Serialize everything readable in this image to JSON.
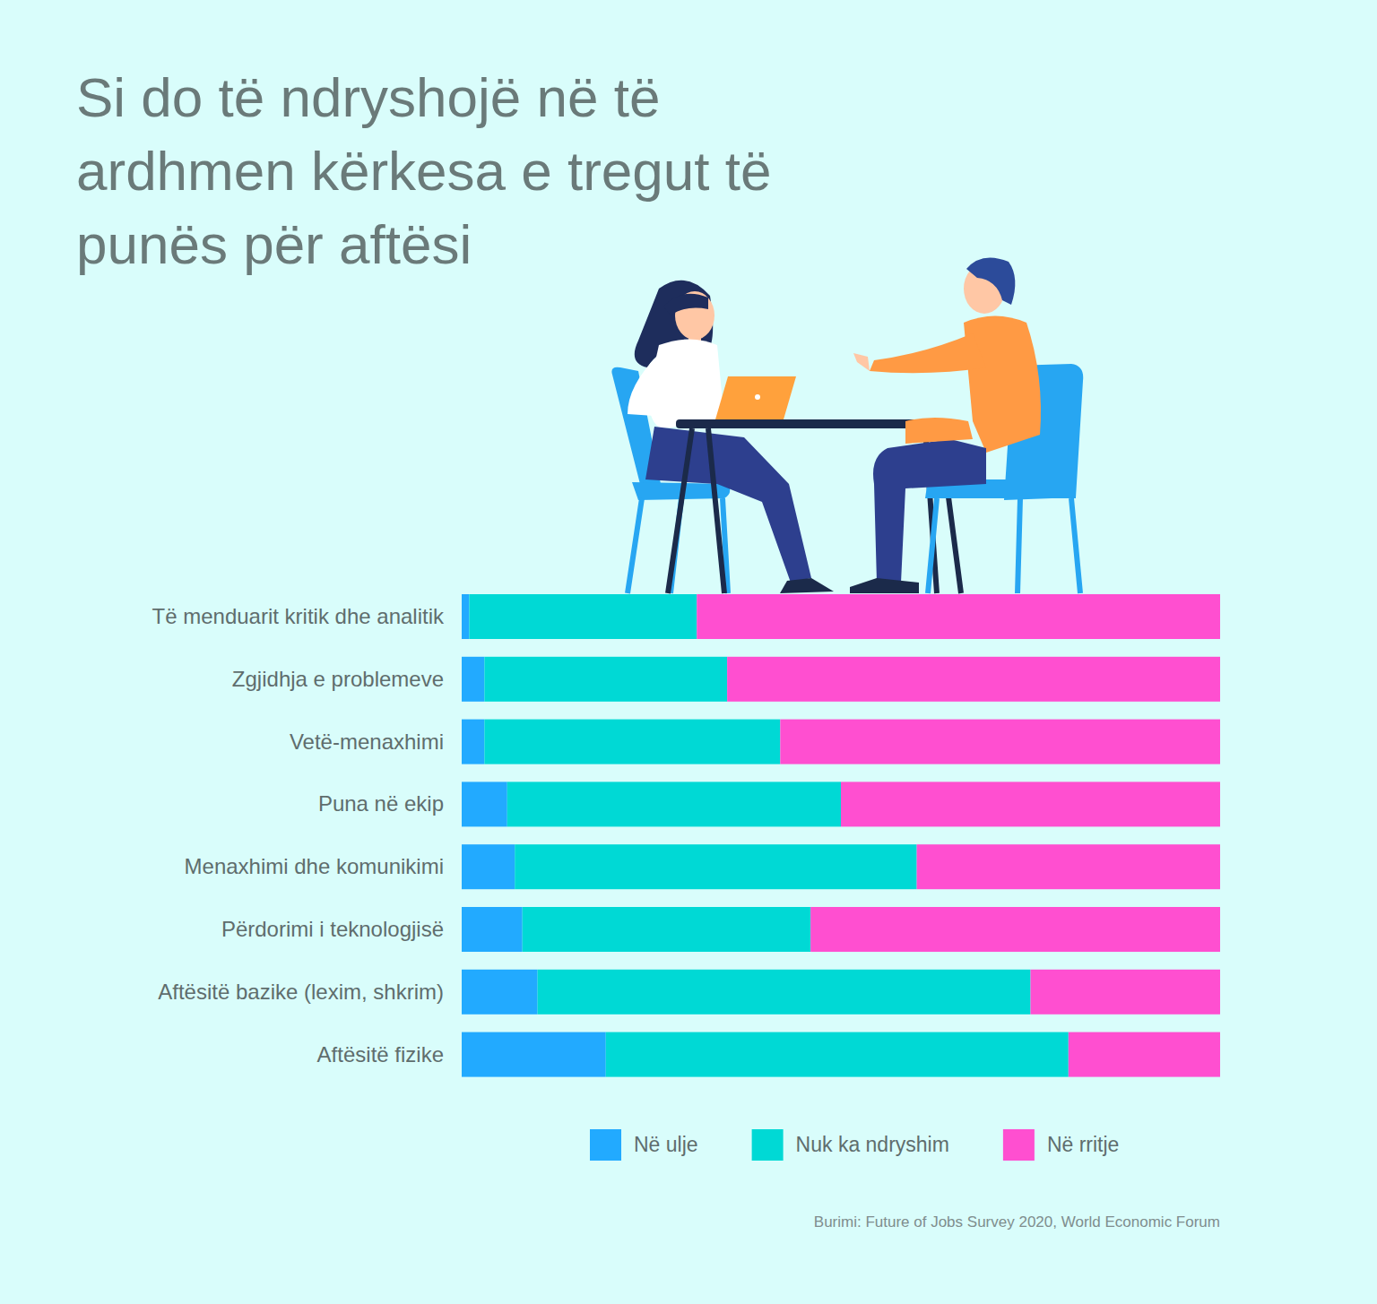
{
  "chart_data": {
    "type": "bar",
    "orientation": "horizontal",
    "stacked": true,
    "title": "Si do të ndryshojë në të ardhmen kërkesa e tregut të punës për aftësi",
    "source": "Burimi: Future of Jobs Survey 2020, World Economic Forum",
    "categories": [
      "Të menduarit kritik dhe analitik",
      "Zgjidhja e problemeve",
      "Vetë-menaxhimi",
      "Puna në ekip",
      "Menaxhimi dhe komunikimi",
      "Përdorimi i teknologjisë",
      "Aftësitë bazike (lexim, shkrim)",
      "Aftësitë fizike"
    ],
    "series": [
      {
        "name": "Në ulje",
        "color": "#22aaff",
        "values": [
          1,
          3,
          3,
          6,
          7,
          8,
          10,
          19
        ]
      },
      {
        "name": "Nuk ka ndryshim",
        "color": "#00d9d5",
        "values": [
          30,
          32,
          39,
          44,
          53,
          38,
          65,
          61
        ]
      },
      {
        "name": "Në rritje",
        "color": "#ff4fd0",
        "values": [
          69,
          65,
          58,
          50,
          40,
          54,
          25,
          20
        ]
      }
    ],
    "xlim": [
      0,
      100
    ],
    "tick_labels": false,
    "grid": false,
    "data_labels": false,
    "legend": "bottom"
  }
}
